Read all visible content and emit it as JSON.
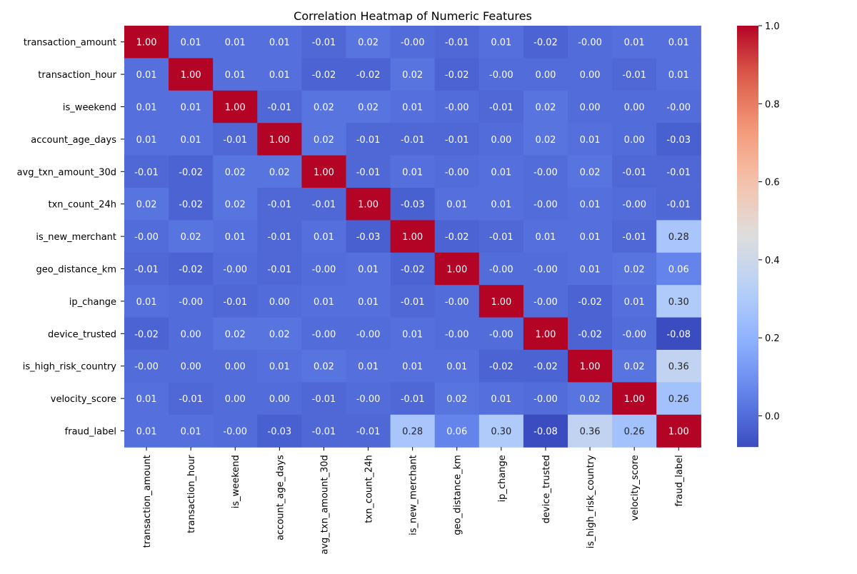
{
  "chart_data": {
    "type": "heatmap",
    "title": "Correlation Heatmap of Numeric Features",
    "row_labels": [
      "transaction_amount",
      "transaction_hour",
      "is_weekend",
      "account_age_days",
      "avg_txn_amount_30d",
      "txn_count_24h",
      "is_new_merchant",
      "geo_distance_km",
      "ip_change",
      "device_trusted",
      "is_high_risk_country",
      "velocity_score",
      "fraud_label"
    ],
    "col_labels": [
      "transaction_amount",
      "transaction_hour",
      "is_weekend",
      "account_age_days",
      "avg_txn_amount_30d",
      "txn_count_24h",
      "is_new_merchant",
      "geo_distance_km",
      "ip_change",
      "device_trusted",
      "is_high_risk_country",
      "velocity_score",
      "fraud_label"
    ],
    "cell_labels": [
      [
        "1.00",
        "0.01",
        "0.01",
        "0.01",
        "-0.01",
        "0.02",
        "-0.00",
        "-0.01",
        "0.01",
        "-0.02",
        "-0.00",
        "0.01",
        "0.01"
      ],
      [
        "0.01",
        "1.00",
        "0.01",
        "0.01",
        "-0.02",
        "-0.02",
        "0.02",
        "-0.02",
        "-0.00",
        "0.00",
        "0.00",
        "-0.01",
        "0.01"
      ],
      [
        "0.01",
        "0.01",
        "1.00",
        "-0.01",
        "0.02",
        "0.02",
        "0.01",
        "-0.00",
        "-0.01",
        "0.02",
        "0.00",
        "0.00",
        "-0.00"
      ],
      [
        "0.01",
        "0.01",
        "-0.01",
        "1.00",
        "0.02",
        "-0.01",
        "-0.01",
        "-0.01",
        "0.00",
        "0.02",
        "0.01",
        "0.00",
        "-0.03"
      ],
      [
        "-0.01",
        "-0.02",
        "0.02",
        "0.02",
        "1.00",
        "-0.01",
        "0.01",
        "-0.00",
        "0.01",
        "-0.00",
        "0.02",
        "-0.01",
        "-0.01"
      ],
      [
        "0.02",
        "-0.02",
        "0.02",
        "-0.01",
        "-0.01",
        "1.00",
        "-0.03",
        "0.01",
        "0.01",
        "-0.00",
        "0.01",
        "-0.00",
        "-0.01"
      ],
      [
        "-0.00",
        "0.02",
        "0.01",
        "-0.01",
        "0.01",
        "-0.03",
        "1.00",
        "-0.02",
        "-0.01",
        "0.01",
        "0.01",
        "-0.01",
        "0.28"
      ],
      [
        "-0.01",
        "-0.02",
        "-0.00",
        "-0.01",
        "-0.00",
        "0.01",
        "-0.02",
        "1.00",
        "-0.00",
        "-0.00",
        "0.01",
        "0.02",
        "0.06"
      ],
      [
        "0.01",
        "-0.00",
        "-0.01",
        "0.00",
        "0.01",
        "0.01",
        "-0.01",
        "-0.00",
        "1.00",
        "-0.00",
        "-0.02",
        "0.01",
        "0.30"
      ],
      [
        "-0.02",
        "0.00",
        "0.02",
        "0.02",
        "-0.00",
        "-0.00",
        "0.01",
        "-0.00",
        "-0.00",
        "1.00",
        "-0.02",
        "-0.00",
        "-0.08"
      ],
      [
        "-0.00",
        "0.00",
        "0.00",
        "0.01",
        "0.02",
        "0.01",
        "0.01",
        "0.01",
        "-0.02",
        "-0.02",
        "1.00",
        "0.02",
        "0.36"
      ],
      [
        "0.01",
        "-0.01",
        "0.00",
        "0.00",
        "-0.01",
        "-0.00",
        "-0.01",
        "0.02",
        "0.01",
        "-0.00",
        "0.02",
        "1.00",
        "0.26"
      ],
      [
        "0.01",
        "0.01",
        "-0.00",
        "-0.03",
        "-0.01",
        "-0.01",
        "0.28",
        "0.06",
        "0.30",
        "-0.08",
        "0.36",
        "0.26",
        "1.00"
      ]
    ],
    "colormap": "coolwarm",
    "color_range": [
      -0.08,
      1.0
    ],
    "colorbar_ticks": [
      "0.0",
      "0.2",
      "0.4",
      "0.6",
      "0.8",
      "1.0"
    ],
    "colorbar_tick_values": [
      0.0,
      0.2,
      0.4,
      0.6,
      0.8,
      1.0
    ]
  }
}
